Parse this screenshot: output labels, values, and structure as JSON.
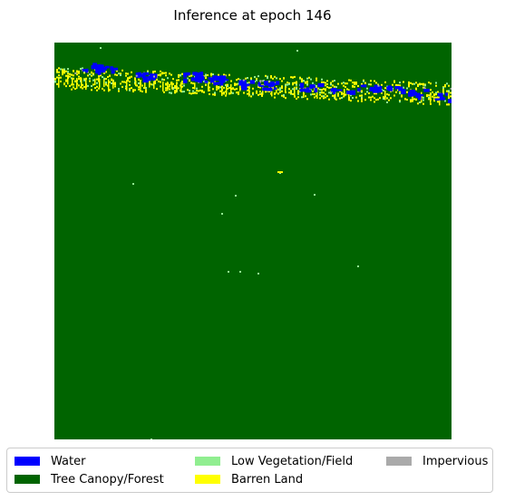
{
  "chart_data": {
    "type": "heatmap",
    "title": "Inference at epoch 146",
    "xlabel": "",
    "ylabel": "",
    "grid": false,
    "axes_visible": false,
    "background_class": "Tree Canopy/Forest",
    "legend": {
      "placement": "bottom",
      "entries": [
        {
          "label": "Water",
          "color": "#0000ff"
        },
        {
          "label": "Tree Canopy/Forest",
          "color": "#006400"
        },
        {
          "label": "Low Vegetation/Field",
          "color": "#90ee90"
        },
        {
          "label": "Barren Land",
          "color": "#ffff00"
        },
        {
          "label": "Impervious",
          "color": "#aaaaaa"
        }
      ]
    },
    "regions": [
      {
        "class": "Barren Land",
        "description_band": "near-top edge strip",
        "from": [
          0.0,
          0.06
        ],
        "to": [
          1.0,
          0.17
        ]
      },
      {
        "class": "Water",
        "description_band": "patches within the strip",
        "from": [
          0.0,
          0.06
        ],
        "to": [
          1.0,
          0.16
        ]
      }
    ]
  }
}
